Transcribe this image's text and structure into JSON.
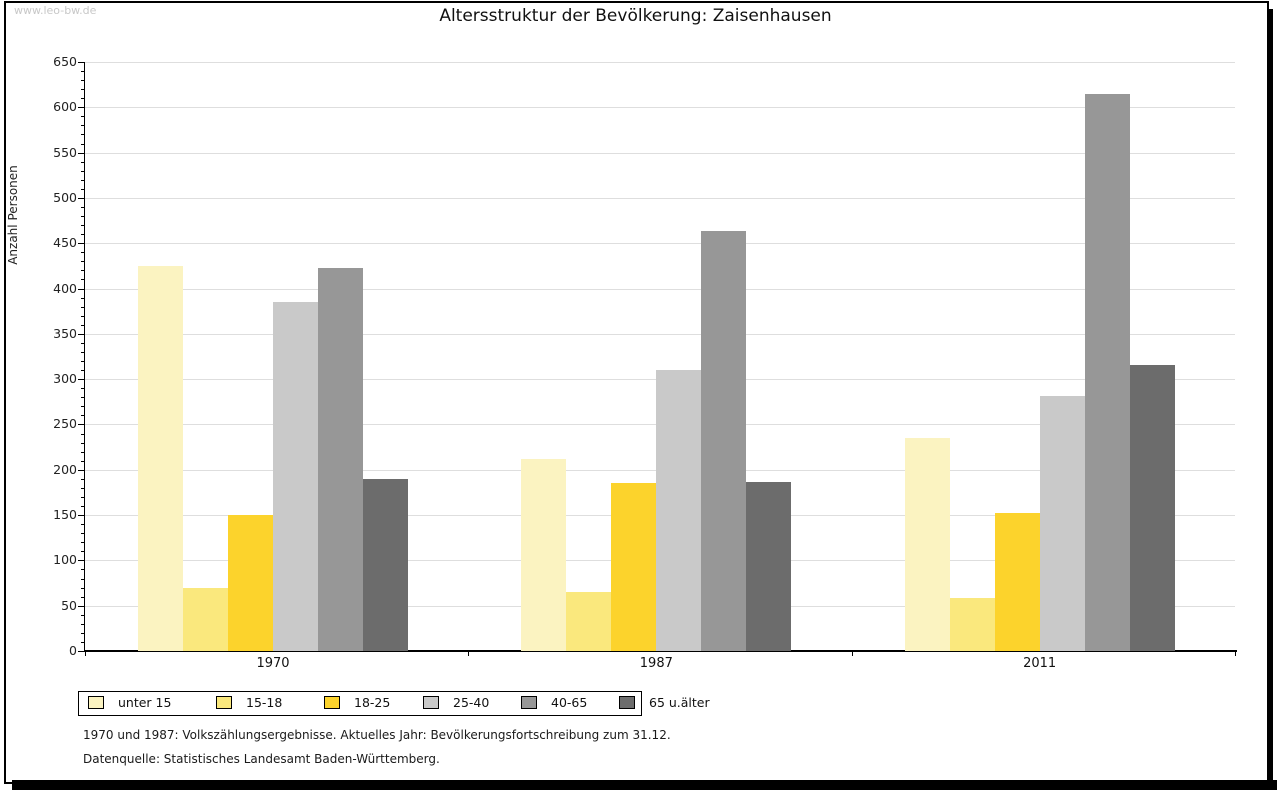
{
  "page": {
    "watermark": "www.leo-bw.de",
    "footnote_line1": "1970 und 1987: Volkszählungsergebnisse. Aktuelles Jahr: Bevölkerungsfortschreibung zum 31.12.",
    "footnote_line2": "Datenquelle: Statistisches Landesamt Baden-Württemberg."
  },
  "chart_data": {
    "type": "bar",
    "title": "Altersstruktur der Bevölkerung: Zaisenhausen",
    "ylabel": "Anzahl Personen",
    "xlabel": "",
    "categories": [
      "1970",
      "1987",
      "2011"
    ],
    "series": [
      {
        "name": "unter 15",
        "color": "#FBF3C1",
        "values": [
          425,
          212,
          235
        ]
      },
      {
        "name": "15-18",
        "color": "#FAE87D",
        "values": [
          70,
          65,
          58
        ]
      },
      {
        "name": "18-25",
        "color": "#FCD32C",
        "values": [
          150,
          185,
          152
        ]
      },
      {
        "name": "25-40",
        "color": "#C9C9C9",
        "values": [
          385,
          310,
          281
        ]
      },
      {
        "name": "40-65",
        "color": "#979797",
        "values": [
          423,
          463,
          615
        ]
      },
      {
        "name": "65 u.älter",
        "color": "#6C6C6C",
        "values": [
          190,
          186,
          316
        ]
      }
    ],
    "ylim": [
      0,
      650
    ],
    "ytick_step": 50,
    "minor_tick_step": 10,
    "grid": "horizontal",
    "grid_color": "#DEDEDE",
    "legend_position": "bottom-left",
    "legend_labels": [
      "unter 15",
      "15-18",
      "18-25",
      "25-40",
      "40-65",
      "65 u.älter"
    ]
  }
}
